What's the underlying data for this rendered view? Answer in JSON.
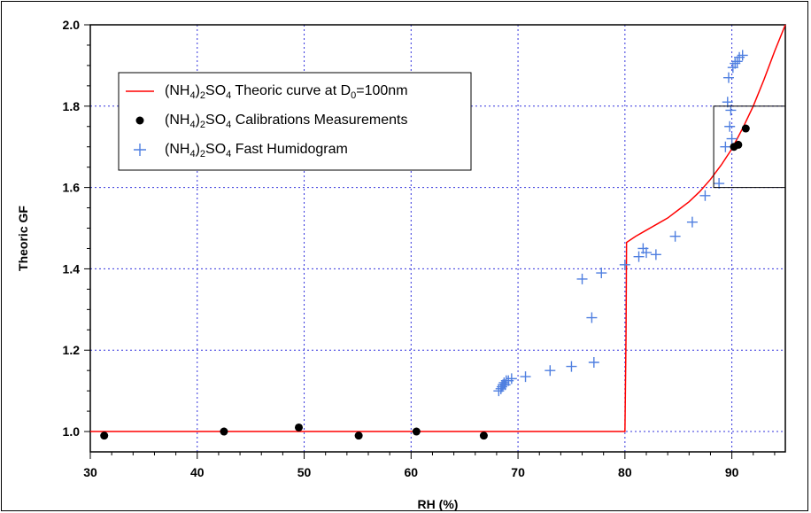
{
  "chart_data": {
    "type": "scatter",
    "xlabel": "RH (%)",
    "ylabel": "Theoric GF",
    "xlim": [
      30,
      95
    ],
    "ylim": [
      0.95,
      2.0
    ],
    "x_ticks": [
      30,
      40,
      50,
      60,
      70,
      80,
      90
    ],
    "y_ticks": [
      1.0,
      1.2,
      1.4,
      1.6,
      1.8,
      2.0
    ],
    "x_tick_labels": [
      "30",
      "40",
      "50",
      "60",
      "70",
      "80",
      "90"
    ],
    "y_tick_labels": [
      "1.0",
      "1.2",
      "1.4",
      "1.6",
      "1.8",
      "2.0"
    ],
    "grid": true,
    "legend_position": "top-left",
    "series": [
      {
        "name": "(NH4)2SO4 Theoric curve at D0=100nm",
        "kind": "line",
        "color": "#ff0000",
        "x": [
          30,
          80,
          80.0,
          80.1,
          80.15,
          81,
          82,
          83,
          84,
          85,
          86,
          87,
          88,
          89,
          90,
          91,
          92,
          93,
          94,
          95
        ],
        "y": [
          1.0,
          1.0,
          1.0,
          1.23,
          1.465,
          1.48,
          1.495,
          1.51,
          1.525,
          1.545,
          1.565,
          1.59,
          1.62,
          1.655,
          1.695,
          1.745,
          1.8,
          1.865,
          1.935,
          2.0
        ]
      },
      {
        "name": "(NH4)2SO4 Calibrations Measurements",
        "kind": "dot",
        "color": "#000000",
        "x": [
          31.3,
          42.5,
          49.5,
          55.1,
          60.5,
          66.8,
          90.2,
          90.6,
          91.3
        ],
        "y": [
          0.99,
          1.0,
          1.01,
          0.99,
          1.0,
          0.99,
          1.7,
          1.705,
          1.745
        ]
      },
      {
        "name": "(NH4)2SO4 Fast Humidogram",
        "kind": "plus",
        "color": "#4f7fe0",
        "x": [
          68.2,
          68.4,
          68.5,
          68.6,
          68.7,
          68.8,
          68.9,
          69.1,
          69.4,
          70.7,
          73.0,
          75.0,
          76.0,
          76.9,
          77.1,
          77.8,
          80.0,
          81.3,
          81.7,
          82.0,
          82.9,
          84.7,
          86.3,
          87.5,
          88.8,
          89.4,
          89.6,
          89.7,
          89.8,
          89.9,
          90.0,
          90.1,
          90.3,
          90.5,
          90.7,
          91.0
        ],
        "y": [
          1.1,
          1.105,
          1.11,
          1.115,
          1.12,
          1.115,
          1.125,
          1.125,
          1.13,
          1.135,
          1.15,
          1.16,
          1.375,
          1.28,
          1.17,
          1.39,
          1.41,
          1.43,
          1.45,
          1.44,
          1.435,
          1.48,
          1.515,
          1.58,
          1.61,
          1.7,
          1.81,
          1.87,
          1.75,
          1.79,
          1.72,
          1.895,
          1.905,
          1.91,
          1.92,
          1.925
        ]
      }
    ],
    "legend": [
      {
        "pre": "(NH",
        "sub1": "4",
        "mid": ")",
        "sub2": "2",
        "so": "SO",
        "sub3": "4",
        "post": " Theoric curve at D",
        "sub4": "0",
        "tail": "=100nm"
      },
      {
        "pre": "(NH",
        "sub1": "4",
        "mid": ")",
        "sub2": "2",
        "so": "SO",
        "sub3": "4",
        "post": "  Calibrations Measurements",
        "sub4": "",
        "tail": ""
      },
      {
        "pre": "(NH",
        "sub1": "4",
        "mid": ")",
        "sub2": "2",
        "so": "SO",
        "sub3": "4",
        "post": "  Fast Humidogram",
        "sub4": "",
        "tail": ""
      }
    ],
    "annotation_box": {
      "x": [
        88.3,
        95
      ],
      "y": [
        1.6,
        1.8
      ]
    }
  }
}
